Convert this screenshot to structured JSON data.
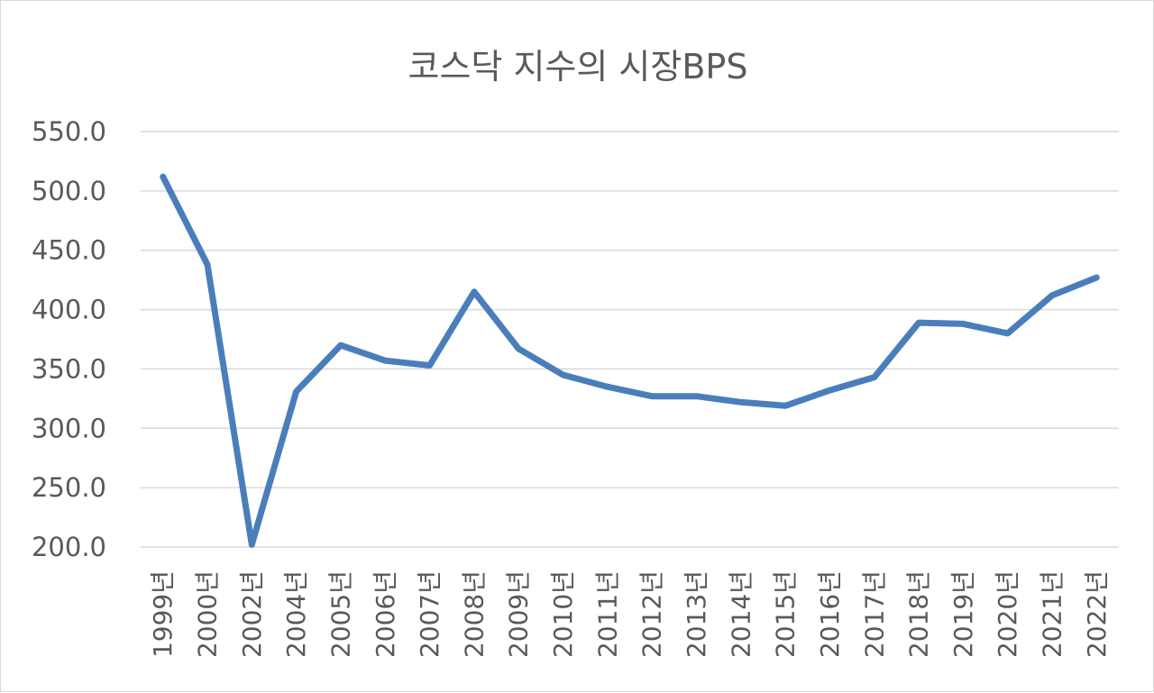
{
  "chart_data": {
    "type": "line",
    "title": "코스닥 지수의 시장BPS",
    "xlabel": "",
    "ylabel": "",
    "categories": [
      "1999년",
      "2000년",
      "2002년",
      "2004년",
      "2005년",
      "2006년",
      "2007년",
      "2008년",
      "2009년",
      "2010년",
      "2011년",
      "2012년",
      "2013년",
      "2014년",
      "2015년",
      "2016년",
      "2017년",
      "2018년",
      "2019년",
      "2020년",
      "2021년",
      "2022년"
    ],
    "series": [
      {
        "values": [
          512,
          438,
          202,
          331,
          370,
          357,
          353,
          415,
          367,
          345,
          335,
          327,
          327,
          322,
          319,
          332,
          343,
          389,
          388,
          380,
          412,
          427
        ],
        "color": "#4a7ebb"
      }
    ],
    "ylim": [
      200,
      550
    ],
    "yticks": [
      "200.0",
      "250.0",
      "300.0",
      "350.0",
      "400.0",
      "450.0",
      "500.0",
      "550.0"
    ],
    "grid": true,
    "legend": "none"
  }
}
